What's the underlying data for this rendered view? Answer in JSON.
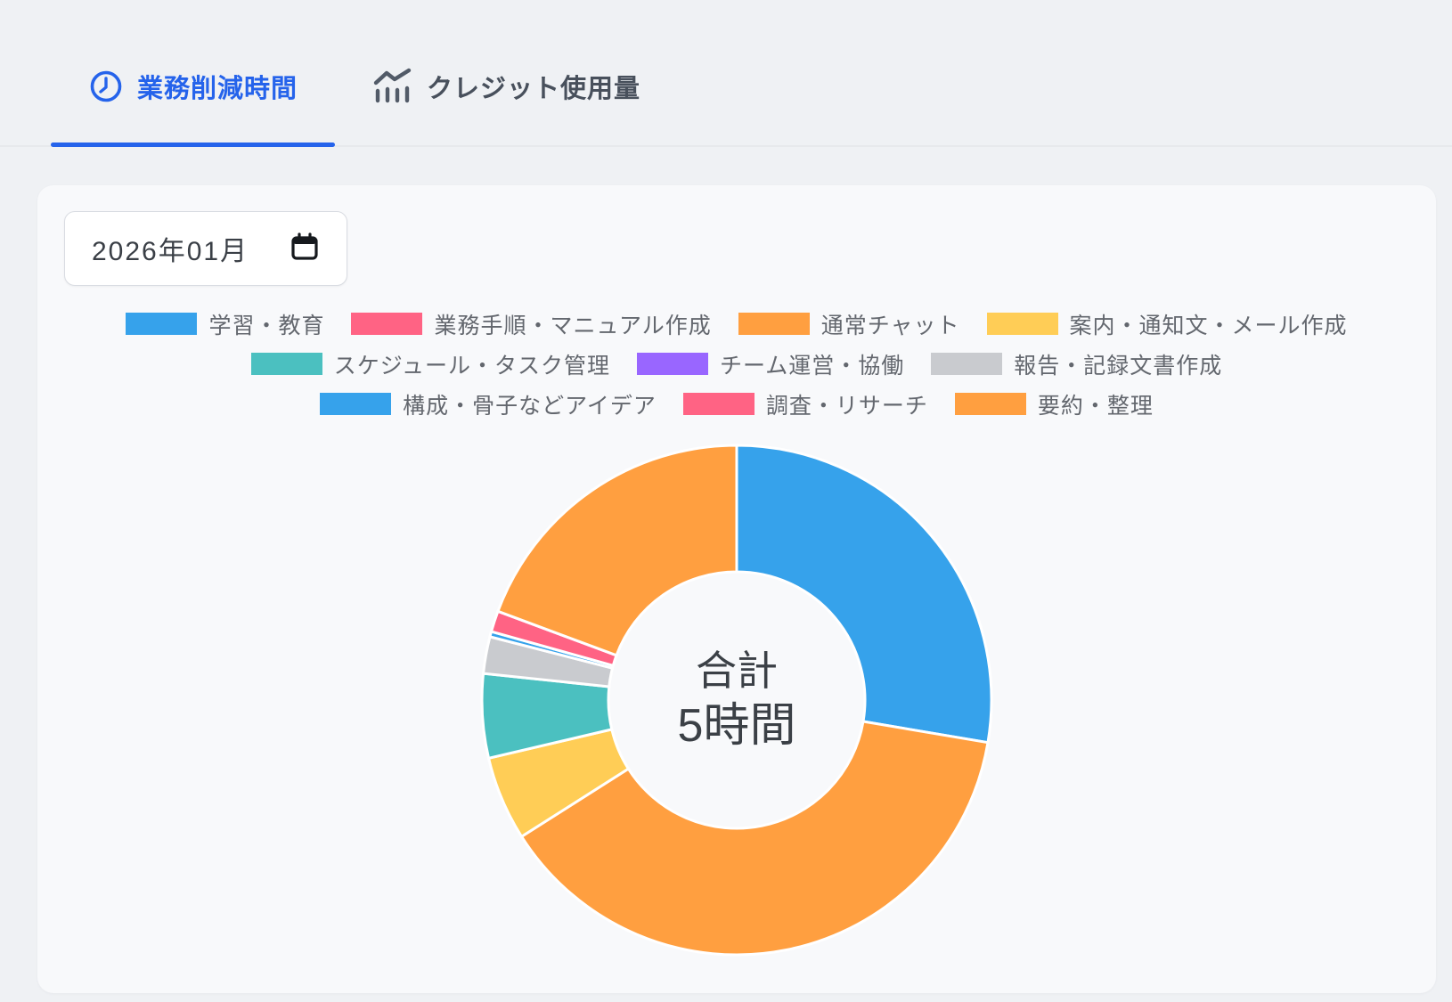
{
  "tabs": [
    {
      "label": "業務削減時間",
      "icon": "clock-icon",
      "active": true
    },
    {
      "label": "クレジット使用量",
      "icon": "bar-trend-icon",
      "active": false
    }
  ],
  "date_picker": {
    "value": "2026年01月",
    "icon": "calendar-icon"
  },
  "chart_data": {
    "type": "pie",
    "style": "donut",
    "cutout": "50%",
    "legend_position": "top",
    "center_label": {
      "line1": "合計",
      "line2": "5時間"
    },
    "total_hours_label": "5時間",
    "unit": "minutes",
    "total_minutes": 300,
    "segments": [
      {
        "label": "学習・教育",
        "color": "#36A2EB",
        "value": 83
      },
      {
        "label": "業務手順・マニュアル作成",
        "color": "#FF6384",
        "value": 0
      },
      {
        "label": "通常チャット",
        "color": "#FF9F40",
        "value": 115
      },
      {
        "label": "案内・通知文・メール作成",
        "color": "#FFCD56",
        "value": 16
      },
      {
        "label": "スケジュール・タスク管理",
        "color": "#4BC0C0",
        "value": 16
      },
      {
        "label": "チーム運営・協働",
        "color": "#9966FF",
        "value": 0
      },
      {
        "label": "報告・記録文書作成",
        "color": "#C9CBCF",
        "value": 7
      },
      {
        "label": "構成・骨子などアイデア",
        "color": "#36A2EB",
        "value": 1
      },
      {
        "label": "調査・リサーチ",
        "color": "#FF6384",
        "value": 4
      },
      {
        "label": "要約・整理",
        "color": "#FF9F40",
        "value": 58
      }
    ],
    "legend_rows": [
      [
        0,
        1,
        2,
        3
      ],
      [
        4,
        5,
        6
      ],
      [
        7,
        8,
        9
      ]
    ]
  },
  "colors": {
    "accent_blue": "#2563EB",
    "inactive_tab": "#48505C",
    "page_bg": "#EFF1F4",
    "card_bg": "#F8F9FB",
    "legend_text": "#63676E",
    "center_text": "#3B4046",
    "segment_border": "#FFFFFF"
  }
}
